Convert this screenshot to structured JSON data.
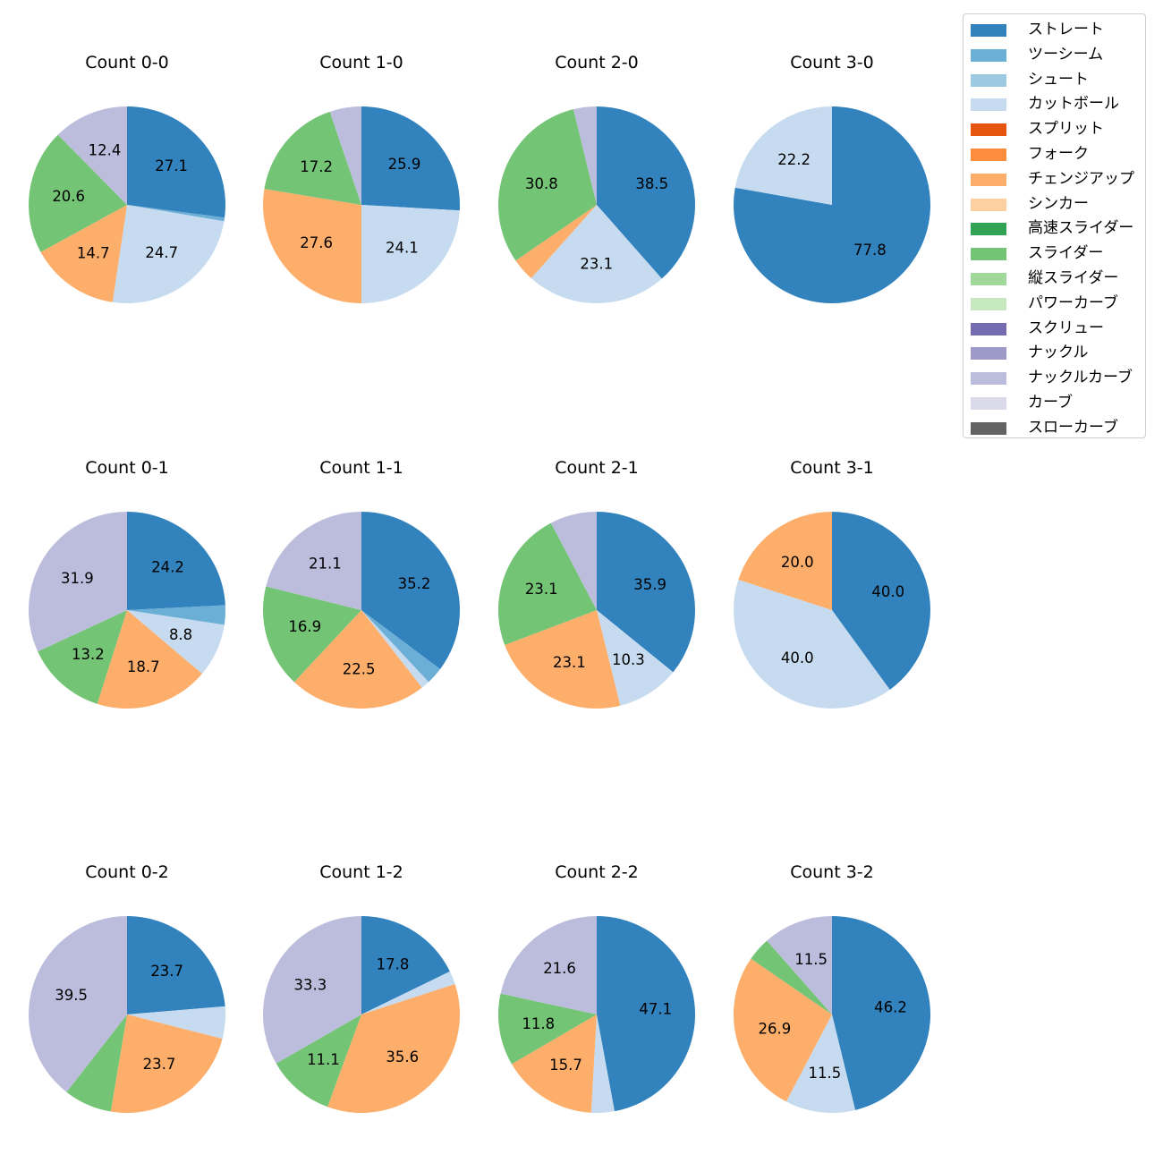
{
  "chart_data": [
    {
      "type": "pie",
      "title": "Count 0-0",
      "slices": [
        {
          "name": "ストレート",
          "value": 27.1,
          "label": "27.1"
        },
        {
          "name": "ツーシーム",
          "value": 0.6,
          "label": ""
        },
        {
          "name": "カットボール",
          "value": 24.7,
          "label": "24.7"
        },
        {
          "name": "チェンジアップ",
          "value": 14.7,
          "label": "14.7"
        },
        {
          "name": "スライダー",
          "value": 20.6,
          "label": "20.6"
        },
        {
          "name": "ナックルカーブ",
          "value": 12.4,
          "label": "12.4"
        }
      ]
    },
    {
      "type": "pie",
      "title": "Count 1-0",
      "slices": [
        {
          "name": "ストレート",
          "value": 25.9,
          "label": "25.9"
        },
        {
          "name": "カットボール",
          "value": 24.1,
          "label": "24.1"
        },
        {
          "name": "チェンジアップ",
          "value": 27.6,
          "label": "27.6"
        },
        {
          "name": "スライダー",
          "value": 17.2,
          "label": "17.2"
        },
        {
          "name": "ナックルカーブ",
          "value": 5.2,
          "label": ""
        }
      ]
    },
    {
      "type": "pie",
      "title": "Count 2-0",
      "slices": [
        {
          "name": "ストレート",
          "value": 38.5,
          "label": "38.5"
        },
        {
          "name": "カットボール",
          "value": 23.1,
          "label": "23.1"
        },
        {
          "name": "チェンジアップ",
          "value": 3.8,
          "label": ""
        },
        {
          "name": "スライダー",
          "value": 30.8,
          "label": "30.8"
        },
        {
          "name": "ナックルカーブ",
          "value": 3.8,
          "label": ""
        }
      ]
    },
    {
      "type": "pie",
      "title": "Count 3-0",
      "slices": [
        {
          "name": "ストレート",
          "value": 77.8,
          "label": "77.8"
        },
        {
          "name": "カットボール",
          "value": 22.2,
          "label": "22.2"
        }
      ]
    },
    {
      "type": "pie",
      "title": "Count 0-1",
      "slices": [
        {
          "name": "ストレート",
          "value": 24.2,
          "label": "24.2"
        },
        {
          "name": "ツーシーム",
          "value": 3.2,
          "label": ""
        },
        {
          "name": "カットボール",
          "value": 8.8,
          "label": "8.8"
        },
        {
          "name": "チェンジアップ",
          "value": 18.7,
          "label": "18.7"
        },
        {
          "name": "スライダー",
          "value": 13.2,
          "label": "13.2"
        },
        {
          "name": "ナックルカーブ",
          "value": 31.9,
          "label": "31.9"
        }
      ]
    },
    {
      "type": "pie",
      "title": "Count 1-1",
      "slices": [
        {
          "name": "ストレート",
          "value": 35.2,
          "label": "35.2"
        },
        {
          "name": "ツーシーム",
          "value": 2.8,
          "label": ""
        },
        {
          "name": "カットボール",
          "value": 1.4,
          "label": ""
        },
        {
          "name": "チェンジアップ",
          "value": 22.5,
          "label": "22.5"
        },
        {
          "name": "スライダー",
          "value": 16.9,
          "label": "16.9"
        },
        {
          "name": "ナックルカーブ",
          "value": 21.1,
          "label": "21.1"
        }
      ]
    },
    {
      "type": "pie",
      "title": "Count 2-1",
      "slices": [
        {
          "name": "ストレート",
          "value": 35.9,
          "label": "35.9"
        },
        {
          "name": "カットボール",
          "value": 10.3,
          "label": "10.3"
        },
        {
          "name": "チェンジアップ",
          "value": 23.1,
          "label": "23.1"
        },
        {
          "name": "スライダー",
          "value": 23.1,
          "label": "23.1"
        },
        {
          "name": "ナックルカーブ",
          "value": 7.7,
          "label": ""
        }
      ]
    },
    {
      "type": "pie",
      "title": "Count 3-1",
      "slices": [
        {
          "name": "ストレート",
          "value": 40.0,
          "label": "40.0"
        },
        {
          "name": "カットボール",
          "value": 40.0,
          "label": "40.0"
        },
        {
          "name": "チェンジアップ",
          "value": 20.0,
          "label": "20.0"
        }
      ]
    },
    {
      "type": "pie",
      "title": "Count 0-2",
      "slices": [
        {
          "name": "ストレート",
          "value": 23.7,
          "label": "23.7"
        },
        {
          "name": "カットボール",
          "value": 5.3,
          "label": ""
        },
        {
          "name": "チェンジアップ",
          "value": 23.7,
          "label": "23.7"
        },
        {
          "name": "スライダー",
          "value": 7.9,
          "label": ""
        },
        {
          "name": "ナックルカーブ",
          "value": 39.5,
          "label": "39.5"
        }
      ]
    },
    {
      "type": "pie",
      "title": "Count 1-2",
      "slices": [
        {
          "name": "ストレート",
          "value": 17.8,
          "label": "17.8"
        },
        {
          "name": "カットボール",
          "value": 2.2,
          "label": ""
        },
        {
          "name": "チェンジアップ",
          "value": 35.6,
          "label": "35.6"
        },
        {
          "name": "スライダー",
          "value": 11.1,
          "label": "11.1"
        },
        {
          "name": "ナックルカーブ",
          "value": 33.3,
          "label": "33.3"
        }
      ]
    },
    {
      "type": "pie",
      "title": "Count 2-2",
      "slices": [
        {
          "name": "ストレート",
          "value": 47.1,
          "label": "47.1"
        },
        {
          "name": "カットボール",
          "value": 3.8,
          "label": ""
        },
        {
          "name": "チェンジアップ",
          "value": 15.7,
          "label": "15.7"
        },
        {
          "name": "スライダー",
          "value": 11.8,
          "label": "11.8"
        },
        {
          "name": "ナックルカーブ",
          "value": 21.6,
          "label": "21.6"
        }
      ]
    },
    {
      "type": "pie",
      "title": "Count 3-2",
      "slices": [
        {
          "name": "ストレート",
          "value": 46.2,
          "label": "46.2"
        },
        {
          "name": "カットボール",
          "value": 11.5,
          "label": "11.5"
        },
        {
          "name": "チェンジアップ",
          "value": 26.9,
          "label": "26.9"
        },
        {
          "name": "スライダー",
          "value": 3.9,
          "label": ""
        },
        {
          "name": "ナックルカーブ",
          "value": 11.5,
          "label": "11.5"
        }
      ]
    }
  ],
  "legend": {
    "placement": "top-right",
    "items": [
      {
        "name": "ストレート",
        "color": "#3182bd"
      },
      {
        "name": "ツーシーム",
        "color": "#6baed6"
      },
      {
        "name": "シュート",
        "color": "#9ecae1"
      },
      {
        "name": "カットボール",
        "color": "#c6dbef"
      },
      {
        "name": "スプリット",
        "color": "#e6550d"
      },
      {
        "name": "フォーク",
        "color": "#fd8d3c"
      },
      {
        "name": "チェンジアップ",
        "color": "#fdae6b"
      },
      {
        "name": "シンカー",
        "color": "#fdd0a2"
      },
      {
        "name": "高速スライダー",
        "color": "#31a354"
      },
      {
        "name": "スライダー",
        "color": "#74c476"
      },
      {
        "name": "縦スライダー",
        "color": "#a1d99b"
      },
      {
        "name": "パワーカーブ",
        "color": "#c7e9c0"
      },
      {
        "name": "スクリュー",
        "color": "#756bb1"
      },
      {
        "name": "ナックル",
        "color": "#9e9ac8"
      },
      {
        "name": "ナックルカーブ",
        "color": "#bcbddc"
      },
      {
        "name": "カーブ",
        "color": "#dadaeb"
      },
      {
        "name": "スローカーブ",
        "color": "#636363"
      }
    ]
  }
}
